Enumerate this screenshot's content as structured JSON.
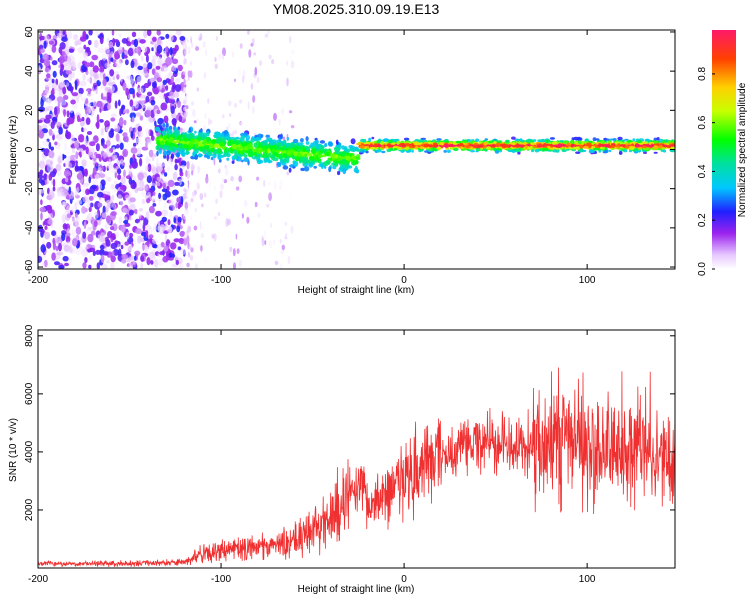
{
  "title": "YM08.2025.310.09.19.E13",
  "chart_data": [
    {
      "type": "heatmap",
      "xlabel": "Height of straight line (km)",
      "ylabel": "Frequency (Hz)",
      "xlim": [
        -200,
        148
      ],
      "ylim": [
        -61,
        61
      ],
      "xticks": [
        -200,
        -100,
        0,
        100
      ],
      "yticks": [
        -60,
        -40,
        -20,
        0,
        20,
        40,
        60
      ],
      "colorbar": {
        "label": "Normalized spectral amplitude",
        "range": [
          0,
          0.98
        ],
        "ticks": [
          "0.0",
          "0.2",
          "0.4",
          "0.6",
          "0.8"
        ],
        "tick_values": [
          0,
          0.2,
          0.4,
          0.6,
          0.8
        ]
      },
      "regions": [
        {
          "name": "broadband noise",
          "x": [
            -200,
            -120
          ],
          "freq": [
            -60,
            60
          ],
          "amplitude": [
            0.02,
            0.25
          ]
        },
        {
          "name": "sparse noise",
          "x": [
            -120,
            -60
          ],
          "freq": [
            -60,
            60
          ],
          "amplitude": [
            0.0,
            0.1
          ]
        },
        {
          "name": "signal onset",
          "x": [
            -135,
            -25
          ],
          "freq_center": [
            5,
            -5
          ],
          "freq_halfwidth": 10,
          "amplitude": [
            0.2,
            0.5
          ]
        },
        {
          "name": "stable tone",
          "x": [
            -25,
            148
          ],
          "freq_center": 2,
          "freq_halfwidth": 4,
          "amplitude": [
            0.6,
            0.95
          ]
        }
      ]
    },
    {
      "type": "line",
      "xlabel": "Height of straight line (km)",
      "ylabel": "SNR (10 * v/v)",
      "xlim": [
        -200,
        148
      ],
      "ylim": [
        0,
        8200
      ],
      "xticks": [
        -200,
        -100,
        0,
        100
      ],
      "yticks": [
        2000,
        4000,
        6000,
        8000
      ],
      "series": [
        {
          "name": "SNR",
          "color": "#f03030",
          "x": [
            -200,
            -150,
            -120,
            -110,
            -100,
            -80,
            -60,
            -50,
            -40,
            -30,
            -25,
            -20,
            -10,
            0,
            10,
            20,
            30,
            40,
            50,
            60,
            70,
            80,
            90,
            100,
            110,
            120,
            130,
            148
          ],
          "y": [
            150,
            150,
            200,
            500,
            600,
            700,
            900,
            1300,
            1700,
            2500,
            3200,
            2200,
            2600,
            3100,
            3500,
            3900,
            4100,
            4200,
            4300,
            4150,
            4250,
            4450,
            4400,
            4150,
            4050,
            3950,
            3850,
            3800
          ]
        }
      ]
    }
  ]
}
